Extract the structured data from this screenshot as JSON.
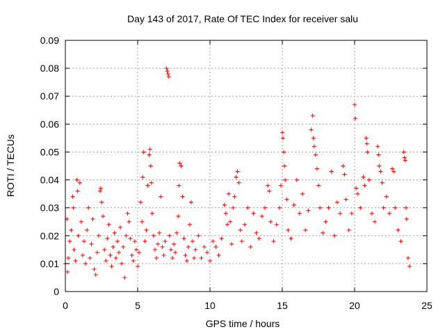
{
  "chart_data": {
    "type": "scatter",
    "title": "Day 143 of 2017, Rate Of TEC Index for receiver salu",
    "xlabel": "GPS time / hours",
    "ylabel": "ROTI / TECUs",
    "xlim": [
      0,
      25
    ],
    "ylim": [
      0,
      0.09
    ],
    "x_ticks": [
      0,
      5,
      10,
      15,
      20,
      25
    ],
    "x_tick_labels": [
      "0",
      "5",
      "10",
      "15",
      "20",
      "25"
    ],
    "y_ticks": [
      0,
      0.01,
      0.02,
      0.03,
      0.04,
      0.05,
      0.06,
      0.07,
      0.08,
      0.09
    ],
    "y_tick_labels": [
      "0",
      "0.01",
      "0.02",
      "0.03",
      "0.04",
      "0.05",
      "0.06",
      "0.07",
      "0.08",
      "0.09"
    ],
    "grid": true,
    "marker": "+",
    "marker_color": "#ff0000",
    "series": [
      {
        "name": "ROTI",
        "points": [
          [
            0.0,
            0.01
          ],
          [
            0.1,
            0.026
          ],
          [
            0.15,
            0.007
          ],
          [
            0.2,
            0.012
          ],
          [
            0.3,
            0.018
          ],
          [
            0.4,
            0.022
          ],
          [
            0.5,
            0.034
          ],
          [
            0.55,
            0.03
          ],
          [
            0.6,
            0.015
          ],
          [
            0.7,
            0.011
          ],
          [
            0.8,
            0.04
          ],
          [
            0.85,
            0.036
          ],
          [
            0.9,
            0.02
          ],
          [
            1.0,
            0.039
          ],
          [
            1.1,
            0.025
          ],
          [
            1.2,
            0.013
          ],
          [
            1.3,
            0.018
          ],
          [
            1.4,
            0.01
          ],
          [
            1.5,
            0.022
          ],
          [
            1.6,
            0.03
          ],
          [
            1.7,
            0.012
          ],
          [
            1.8,
            0.017
          ],
          [
            1.9,
            0.026
          ],
          [
            2.0,
            0.008
          ],
          [
            2.1,
            0.006
          ],
          [
            2.2,
            0.014
          ],
          [
            2.3,
            0.02
          ],
          [
            2.4,
            0.036
          ],
          [
            2.45,
            0.037
          ],
          [
            2.5,
            0.032
          ],
          [
            2.6,
            0.027
          ],
          [
            2.7,
            0.015
          ],
          [
            2.8,
            0.011
          ],
          [
            2.9,
            0.019
          ],
          [
            3.0,
            0.024
          ],
          [
            3.1,
            0.013
          ],
          [
            3.2,
            0.009
          ],
          [
            3.3,
            0.016
          ],
          [
            3.4,
            0.021
          ],
          [
            3.5,
            0.012
          ],
          [
            3.6,
            0.018
          ],
          [
            3.7,
            0.014
          ],
          [
            3.8,
            0.023
          ],
          [
            3.9,
            0.01
          ],
          [
            4.0,
            0.016
          ],
          [
            4.1,
            0.005
          ],
          [
            4.2,
            0.02
          ],
          [
            4.3,
            0.028
          ],
          [
            4.4,
            0.025
          ],
          [
            4.5,
            0.019
          ],
          [
            4.6,
            0.013
          ],
          [
            4.7,
            0.011
          ],
          [
            4.8,
            0.018
          ],
          [
            4.9,
            0.015
          ],
          [
            5.0,
            0.009
          ],
          [
            5.1,
            0.014
          ],
          [
            5.2,
            0.032
          ],
          [
            5.3,
            0.025
          ],
          [
            5.35,
            0.041
          ],
          [
            5.4,
            0.05
          ],
          [
            5.5,
            0.018
          ],
          [
            5.6,
            0.022
          ],
          [
            5.7,
            0.038
          ],
          [
            5.8,
            0.049
          ],
          [
            5.85,
            0.051
          ],
          [
            5.9,
            0.045
          ],
          [
            5.95,
            0.039
          ],
          [
            6.0,
            0.028
          ],
          [
            6.1,
            0.02
          ],
          [
            6.2,
            0.015
          ],
          [
            6.3,
            0.012
          ],
          [
            6.4,
            0.017
          ],
          [
            6.5,
            0.021
          ],
          [
            6.6,
            0.034
          ],
          [
            6.7,
            0.016
          ],
          [
            6.8,
            0.013
          ],
          [
            6.9,
            0.018
          ],
          [
            7.0,
            0.08
          ],
          [
            7.05,
            0.079
          ],
          [
            7.1,
            0.078
          ],
          [
            7.15,
            0.077
          ],
          [
            7.2,
            0.02
          ],
          [
            7.3,
            0.015
          ],
          [
            7.4,
            0.012
          ],
          [
            7.5,
            0.017
          ],
          [
            7.6,
            0.014
          ],
          [
            7.7,
            0.021
          ],
          [
            7.8,
            0.027
          ],
          [
            7.85,
            0.038
          ],
          [
            7.9,
            0.046
          ],
          [
            8.0,
            0.045
          ],
          [
            8.1,
            0.034
          ],
          [
            8.2,
            0.019
          ],
          [
            8.3,
            0.013
          ],
          [
            8.4,
            0.011
          ],
          [
            8.5,
            0.016
          ],
          [
            8.6,
            0.024
          ],
          [
            8.7,
            0.032
          ],
          [
            8.8,
            0.018
          ],
          [
            8.9,
            0.012
          ],
          [
            9.0,
            0.015
          ],
          [
            9.2,
            0.02
          ],
          [
            9.4,
            0.012
          ],
          [
            9.6,
            0.016
          ],
          [
            9.8,
            0.014
          ],
          [
            10.0,
            0.011
          ],
          [
            10.2,
            0.018
          ],
          [
            10.4,
            0.016
          ],
          [
            10.6,
            0.013
          ],
          [
            10.8,
            0.019
          ],
          [
            11.0,
            0.031
          ],
          [
            11.1,
            0.028
          ],
          [
            11.2,
            0.024
          ],
          [
            11.3,
            0.035
          ],
          [
            11.4,
            0.025
          ],
          [
            11.5,
            0.017
          ],
          [
            11.6,
            0.03
          ],
          [
            11.7,
            0.034
          ],
          [
            11.8,
            0.041
          ],
          [
            11.9,
            0.043
          ],
          [
            12.0,
            0.039
          ],
          [
            12.1,
            0.022
          ],
          [
            12.2,
            0.018
          ],
          [
            12.4,
            0.024
          ],
          [
            12.6,
            0.03
          ],
          [
            12.8,
            0.016
          ],
          [
            13.0,
            0.028
          ],
          [
            13.2,
            0.021
          ],
          [
            13.4,
            0.019
          ],
          [
            13.6,
            0.027
          ],
          [
            13.8,
            0.03
          ],
          [
            14.0,
            0.038
          ],
          [
            14.1,
            0.036
          ],
          [
            14.2,
            0.025
          ],
          [
            14.4,
            0.018
          ],
          [
            14.6,
            0.024
          ],
          [
            14.8,
            0.03
          ],
          [
            14.9,
            0.038
          ],
          [
            15.0,
            0.057
          ],
          [
            15.05,
            0.055
          ],
          [
            15.1,
            0.05
          ],
          [
            15.15,
            0.045
          ],
          [
            15.2,
            0.04
          ],
          [
            15.3,
            0.033
          ],
          [
            15.4,
            0.022
          ],
          [
            15.6,
            0.019
          ],
          [
            15.8,
            0.031
          ],
          [
            16.0,
            0.04
          ],
          [
            16.2,
            0.028
          ],
          [
            16.4,
            0.035
          ],
          [
            16.6,
            0.022
          ],
          [
            16.8,
            0.029
          ],
          [
            17.0,
            0.058
          ],
          [
            17.1,
            0.063
          ],
          [
            17.15,
            0.055
          ],
          [
            17.2,
            0.052
          ],
          [
            17.3,
            0.049
          ],
          [
            17.4,
            0.044
          ],
          [
            17.5,
            0.038
          ],
          [
            17.6,
            0.03
          ],
          [
            17.8,
            0.021
          ],
          [
            18.0,
            0.025
          ],
          [
            18.2,
            0.03
          ],
          [
            18.4,
            0.043
          ],
          [
            18.6,
            0.02
          ],
          [
            18.8,
            0.032
          ],
          [
            19.0,
            0.028
          ],
          [
            19.2,
            0.045
          ],
          [
            19.3,
            0.042
          ],
          [
            19.4,
            0.033
          ],
          [
            19.6,
            0.022
          ],
          [
            19.8,
            0.028
          ],
          [
            20.0,
            0.067
          ],
          [
            20.05,
            0.062
          ],
          [
            20.1,
            0.037
          ],
          [
            20.2,
            0.035
          ],
          [
            20.4,
            0.03
          ],
          [
            20.6,
            0.041
          ],
          [
            20.7,
            0.038
          ],
          [
            20.8,
            0.055
          ],
          [
            20.85,
            0.053
          ],
          [
            20.9,
            0.05
          ],
          [
            21.0,
            0.04
          ],
          [
            21.2,
            0.028
          ],
          [
            21.4,
            0.025
          ],
          [
            21.6,
            0.052
          ],
          [
            21.65,
            0.049
          ],
          [
            21.7,
            0.045
          ],
          [
            21.8,
            0.043
          ],
          [
            21.9,
            0.039
          ],
          [
            22.0,
            0.03
          ],
          [
            22.2,
            0.034
          ],
          [
            22.4,
            0.028
          ],
          [
            22.6,
            0.044
          ],
          [
            22.7,
            0.043
          ],
          [
            22.8,
            0.03
          ],
          [
            23.0,
            0.022
          ],
          [
            23.2,
            0.018
          ],
          [
            23.4,
            0.05
          ],
          [
            23.45,
            0.048
          ],
          [
            23.5,
            0.047
          ],
          [
            23.55,
            0.03
          ],
          [
            23.6,
            0.026
          ],
          [
            23.7,
            0.012
          ],
          [
            23.8,
            0.009
          ]
        ]
      }
    ]
  }
}
